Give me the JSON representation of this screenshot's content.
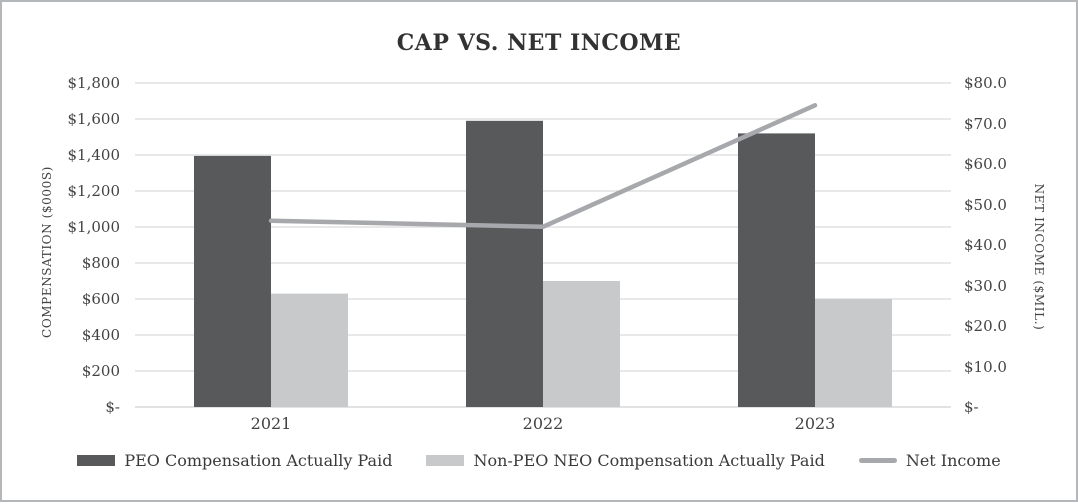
{
  "title": "CAP VS. NET INCOME",
  "colors": {
    "peo_bar": "#58595b",
    "non_peo_bar": "#c8c9cb",
    "net_income_line": "#a6a8ab",
    "gridline": "#d9d9d9",
    "axis_line": "#d0d1d3",
    "border": "#b5b8bb",
    "text": "#434345"
  },
  "chart_data": {
    "type": "combo-bar-line",
    "title": "CAP VS. NET INCOME",
    "categories": [
      "2021",
      "2022",
      "2023"
    ],
    "series": [
      {
        "name": "PEO Compensation Actually Paid",
        "chart_type": "bar",
        "axis": "left",
        "color": "#58595b",
        "values": [
          1395,
          1590,
          1520
        ]
      },
      {
        "name": "Non-PEO NEO Compensation Actually Paid",
        "chart_type": "bar",
        "axis": "left",
        "color": "#c8c9cb",
        "values": [
          630,
          700,
          600
        ]
      },
      {
        "name": "Net Income",
        "chart_type": "line",
        "axis": "right",
        "color": "#a6a8ab",
        "values": [
          46,
          44.5,
          74.5
        ]
      }
    ],
    "left_axis": {
      "label": "COMPENSATION ($000S)",
      "min": 0,
      "max": 1800,
      "step": 200,
      "tick_labels": [
        "$-",
        "$200",
        "$400",
        "$600",
        "$800",
        "$1,000",
        "$1,200",
        "$1,400",
        "$1,600",
        "$1,800"
      ]
    },
    "right_axis": {
      "label": "NET INCOME ($MIL.)",
      "min": 0,
      "max": 80,
      "step": 10,
      "tick_labels": [
        "$-",
        "$10.0",
        "$20.0",
        "$30.0",
        "$40.0",
        "$50.0",
        "$60.0",
        "$70.0",
        "$80.0"
      ]
    },
    "grid": true,
    "legend_position": "bottom"
  },
  "legend": [
    {
      "label": "PEO Compensation Actually Paid",
      "swatch": "bar",
      "color": "#58595b"
    },
    {
      "label": "Non-PEO NEO Compensation Actually Paid",
      "swatch": "bar",
      "color": "#c8c9cb"
    },
    {
      "label": "Net Income",
      "swatch": "line",
      "color": "#a6a8ab"
    }
  ]
}
